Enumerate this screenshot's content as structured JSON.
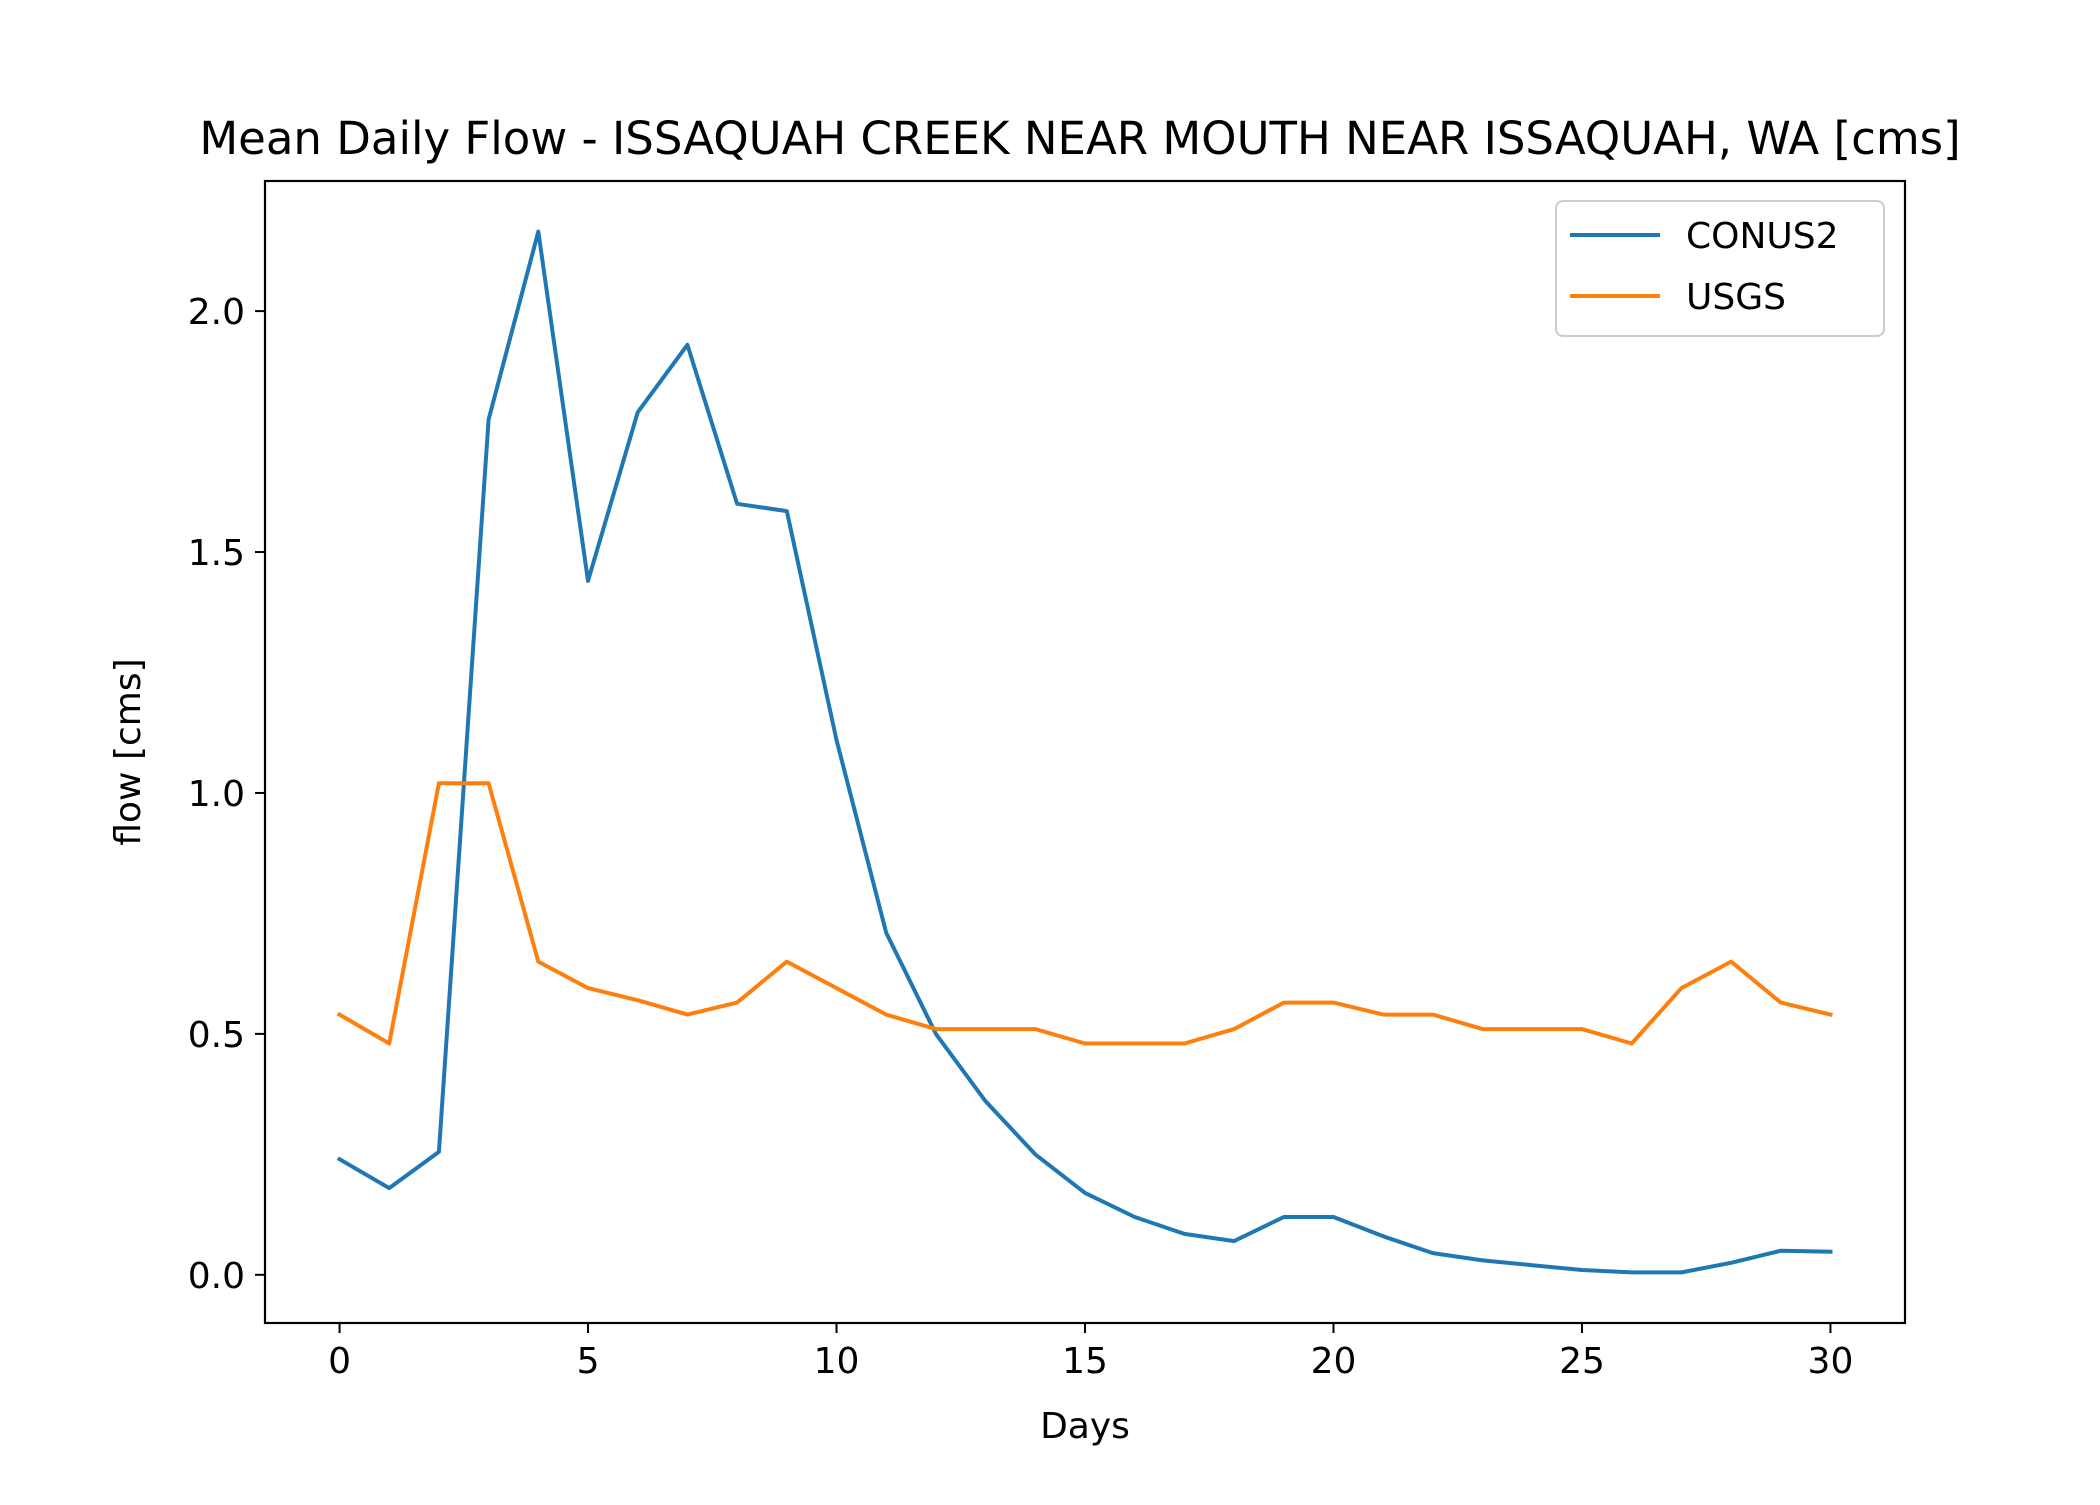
{
  "chart_data": {
    "type": "line",
    "title": "Mean Daily Flow - ISSAQUAH CREEK NEAR MOUTH NEAR ISSAQUAH, WA [cms]",
    "xlabel": "Days",
    "ylabel": "flow [cms]",
    "xlim": [
      -1.5,
      31.5
    ],
    "ylim": [
      -0.1,
      2.27
    ],
    "xticks": [
      0,
      5,
      10,
      15,
      20,
      25,
      30
    ],
    "xtick_labels": [
      "0",
      "5",
      "10",
      "15",
      "20",
      "25",
      "30"
    ],
    "yticks": [
      0.0,
      0.5,
      1.0,
      1.5,
      2.0
    ],
    "ytick_labels": [
      "0.0",
      "0.5",
      "1.0",
      "1.5",
      "2.0"
    ],
    "grid": false,
    "legend_position": "top-right",
    "x": [
      0,
      1,
      2,
      3,
      4,
      5,
      6,
      7,
      8,
      9,
      10,
      11,
      12,
      13,
      14,
      15,
      16,
      17,
      18,
      19,
      20,
      21,
      22,
      23,
      24,
      25,
      26,
      27,
      28,
      29,
      30
    ],
    "series": [
      {
        "name": "CONUS2",
        "color": "#1f77b4",
        "values": [
          0.24,
          0.18,
          0.255,
          1.775,
          2.165,
          1.44,
          1.79,
          1.93,
          1.6,
          1.585,
          1.11,
          0.71,
          0.5,
          0.36,
          0.25,
          0.17,
          0.12,
          0.085,
          0.07,
          0.12,
          0.12,
          0.08,
          0.045,
          0.03,
          0.02,
          0.01,
          0.005,
          0.005,
          0.025,
          0.05,
          0.048
        ]
      },
      {
        "name": "USGS",
        "color": "#ff7f0e",
        "values": [
          0.54,
          0.48,
          1.02,
          1.02,
          0.65,
          0.595,
          0.57,
          0.54,
          0.565,
          0.65,
          0.595,
          0.54,
          0.51,
          0.51,
          0.51,
          0.48,
          0.48,
          0.48,
          0.51,
          0.565,
          0.565,
          0.54,
          0.54,
          0.51,
          0.51,
          0.51,
          0.48,
          0.595,
          0.65,
          0.565,
          0.54
        ]
      }
    ]
  }
}
